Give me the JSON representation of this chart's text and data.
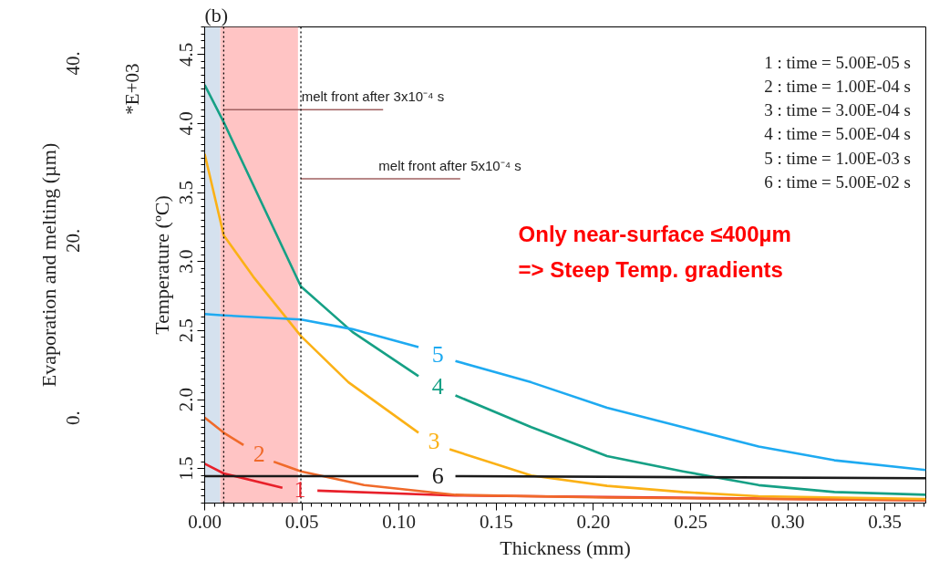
{
  "chart_data": {
    "type": "line",
    "xlabel": "Thickness (mm)",
    "ylabel": "Temperature (ºC)",
    "y2label": "Evaporation and melting (µm)",
    "xlim": [
      0,
      0.371
    ],
    "ylim": [
      1.25,
      4.7
    ],
    "y2lim": [
      -9.6,
      44.1
    ],
    "xticks": [
      {
        "value": 0,
        "label": "0.00"
      },
      {
        "value": 0.05,
        "label": "0.05"
      },
      {
        "value": 0.1,
        "label": "0.10"
      },
      {
        "value": 0.15,
        "label": "0.15"
      },
      {
        "value": 0.2,
        "label": "0.20"
      },
      {
        "value": 0.25,
        "label": "0.25"
      },
      {
        "value": 0.3,
        "label": "0.30"
      },
      {
        "value": 0.35,
        "label": "0.35"
      }
    ],
    "yticks": [
      1.5,
      {
        "value": 2,
        "label": "2.0"
      },
      2.5,
      {
        "value": 3,
        "label": "3.0"
      },
      3.5,
      {
        "value": 4,
        "label": "4.0"
      },
      4.5
    ],
    "y2ticks": [
      {
        "value": 0,
        "label": "0."
      },
      {
        "value": 20,
        "label": "20."
      },
      {
        "value": 40,
        "label": "40."
      }
    ],
    "grid": false,
    "line_style": "solid",
    "series": [
      {
        "name": "1",
        "color": "#e8202a",
        "x": [
          0,
          0.0098,
          0.04,
          0.049,
          0.058,
          0.129,
          0.371
        ],
        "values": [
          1.535,
          1.465,
          1.36,
          null,
          1.34,
          1.305,
          1.27
        ]
      },
      {
        "name": "2",
        "color": "#f06a2a",
        "x": [
          0,
          0.0098,
          0.02,
          0.028,
          0.0355,
          0.0495,
          0.082,
          0.129,
          0.207,
          0.371
        ],
        "values": [
          1.87,
          1.76,
          1.67,
          null,
          1.55,
          1.48,
          1.38,
          1.31,
          1.29,
          1.27
        ]
      },
      {
        "name": "3",
        "color": "#fbb116",
        "x": [
          0,
          0.0098,
          0.025,
          0.0495,
          0.074,
          0.11,
          0.118,
          0.126,
          0.168,
          0.207,
          0.246,
          0.285,
          0.371
        ],
        "values": [
          3.78,
          3.19,
          2.89,
          2.46,
          2.125,
          1.76,
          null,
          1.64,
          1.45,
          1.375,
          1.33,
          1.3,
          1.28
        ]
      },
      {
        "name": "4",
        "color": "#16a085",
        "x": [
          0,
          0.0098,
          0.0495,
          0.076,
          0.11,
          0.12,
          0.129,
          0.168,
          0.207,
          0.246,
          0.285,
          0.324,
          0.371
        ],
        "values": [
          4.28,
          4.01,
          2.82,
          2.49,
          2.17,
          null,
          2.03,
          1.8,
          1.59,
          1.48,
          1.38,
          1.33,
          1.31
        ]
      },
      {
        "name": "5",
        "color": "#1eaaf1",
        "x": [
          0,
          0.0098,
          0.0495,
          0.076,
          0.11,
          0.12,
          0.129,
          0.168,
          0.207,
          0.246,
          0.285,
          0.324,
          0.371
        ],
        "values": [
          2.62,
          2.61,
          2.58,
          2.51,
          2.38,
          null,
          2.28,
          2.125,
          1.94,
          1.8,
          1.66,
          1.56,
          1.49
        ]
      },
      {
        "name": "6",
        "color": "#1a1a1a",
        "x": [
          0,
          0.11,
          0.12,
          0.129,
          0.371
        ],
        "values": [
          1.445,
          1.445,
          null,
          1.445,
          1.43
        ]
      }
    ],
    "bands": [
      {
        "axis": "x",
        "from": 0,
        "to": 0.008,
        "color": "#d5e1ee"
      },
      {
        "axis": "x",
        "from": 0.008,
        "to": 0.048,
        "color": "#ffc4c4"
      }
    ],
    "ref_lines": [
      {
        "axis": "x",
        "value": 0.0098,
        "color": "#000000",
        "line_style": "dotted"
      },
      {
        "axis": "x",
        "value": 0.0495,
        "color": "#000000",
        "line_style": "dotted"
      }
    ],
    "annotations": [
      "(b)",
      "*E+03",
      "1 : time  = 5.00E-05 s",
      "2 : time  = 1.00E-04 s",
      "3 : time  = 3.00E-04 s",
      "4 : time  = 5.00E-04 s",
      "5 : time  = 1.00E-03 s",
      "6 : time  = 5.00E-02 s",
      "Only near-surface ≤400µm",
      "=> Steep Temp. gradients",
      {
        "text": "melt front after 3x10⁻⁴ s",
        "x": 0.0098,
        "y": 4.1
      },
      {
        "text": "melt front after 5x10⁻⁴ s",
        "x": 0.0495,
        "y": 3.6
      }
    ]
  }
}
